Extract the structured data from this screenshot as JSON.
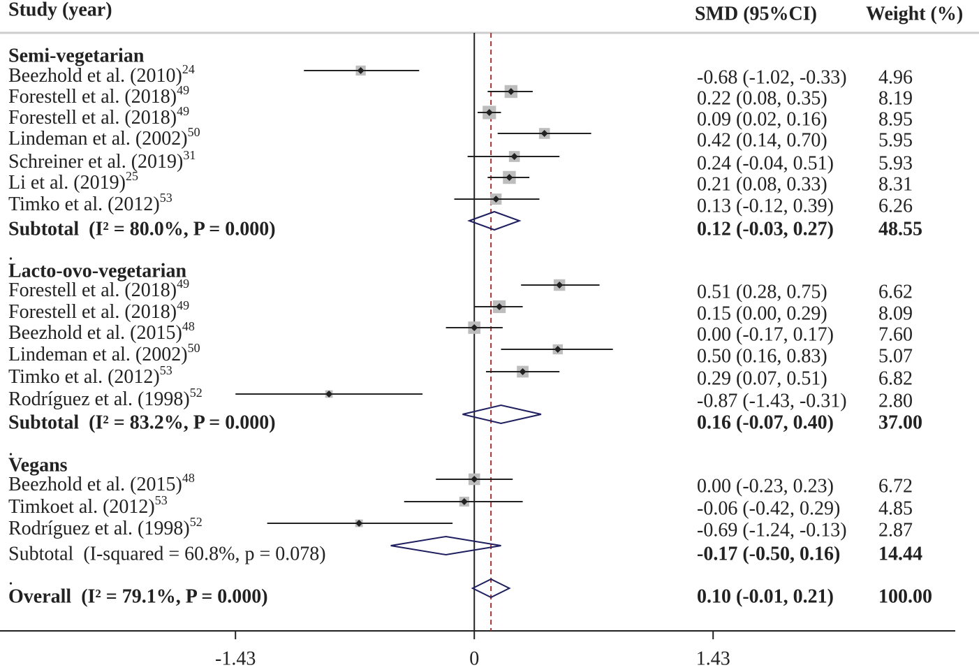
{
  "chart_data": {
    "type": "forest",
    "headers": {
      "study": "Study (year)",
      "estimate": "SMD (95%CI)",
      "weight": "Weight (%)"
    },
    "xlim": [
      -2.84,
      2.88
    ],
    "xticks": [
      -1.43,
      0,
      1.43
    ],
    "groups": [
      {
        "name": "Semi-vegetarian",
        "rows": [
          {
            "label": "Beezhold et al. (2010)",
            "ref": "24",
            "estimate": -0.68,
            "lower": -1.02,
            "upper": -0.33,
            "weight": 4.96,
            "estimate_label": "-0.68 (-1.02, -0.33)",
            "weight_label": "4.96"
          },
          {
            "label": "Forestell et al. (2018)",
            "ref": "49",
            "estimate": 0.22,
            "lower": 0.08,
            "upper": 0.35,
            "weight": 8.19,
            "estimate_label": "0.22 (0.08, 0.35)",
            "weight_label": "8.19"
          },
          {
            "label": "Forestell et al. (2018)",
            "ref": "49",
            "estimate": 0.09,
            "lower": 0.02,
            "upper": 0.16,
            "weight": 8.95,
            "estimate_label": "0.09 (0.02, 0.16)",
            "weight_label": "8.95"
          },
          {
            "label": "Lindeman et al. (2002)",
            "ref": "50",
            "estimate": 0.42,
            "lower": 0.14,
            "upper": 0.7,
            "weight": 5.95,
            "estimate_label": "0.42 (0.14, 0.70)",
            "weight_label": "5.95"
          },
          {
            "label": "Schreiner et al. (2019)",
            "ref": "31",
            "estimate": 0.24,
            "lower": -0.04,
            "upper": 0.51,
            "weight": 5.93,
            "estimate_label": "0.24 (-0.04, 0.51)",
            "weight_label": "5.93"
          },
          {
            "label": "Li et al. (2019)",
            "ref": "25",
            "estimate": 0.21,
            "lower": 0.08,
            "upper": 0.33,
            "weight": 8.31,
            "estimate_label": "0.21 (0.08, 0.33)",
            "weight_label": "8.31"
          },
          {
            "label": "Timko et al. (2012)",
            "ref": "53",
            "estimate": 0.13,
            "lower": -0.12,
            "upper": 0.39,
            "weight": 6.26,
            "estimate_label": "0.13 (-0.12, 0.39)",
            "weight_label": "6.26"
          }
        ],
        "subtotal": {
          "label": "Subtotal  (I² = 80.0%, P = 0.000)",
          "estimate": 0.12,
          "lower": -0.03,
          "upper": 0.27,
          "weight": 48.55,
          "estimate_label": "0.12 (-0.03, 0.27)",
          "weight_label": "48.55"
        },
        "trailer": "."
      },
      {
        "name": "Lacto-ovo-vegetarian",
        "rows": [
          {
            "label": "Forestell et al. (2018)",
            "ref": "49",
            "estimate": 0.51,
            "lower": 0.28,
            "upper": 0.75,
            "weight": 6.62,
            "estimate_label": "0.51 (0.28, 0.75)",
            "weight_label": "6.62"
          },
          {
            "label": "Forestell et al. (2018)",
            "ref": "49",
            "estimate": 0.15,
            "lower": 0.0,
            "upper": 0.29,
            "weight": 8.09,
            "estimate_label": "0.15 (0.00, 0.29)",
            "weight_label": "8.09"
          },
          {
            "label": "Beezhold et al. (2015)",
            "ref": "48",
            "estimate": 0.0,
            "lower": -0.17,
            "upper": 0.17,
            "weight": 7.6,
            "estimate_label": "0.00 (-0.17, 0.17)",
            "weight_label": "7.60"
          },
          {
            "label": "Lindeman et al. (2002)",
            "ref": "50",
            "estimate": 0.5,
            "lower": 0.16,
            "upper": 0.83,
            "weight": 5.07,
            "estimate_label": "0.50 (0.16, 0.83)",
            "weight_label": "5.07"
          },
          {
            "label": "Timko et al. (2012)",
            "ref": "53",
            "estimate": 0.29,
            "lower": 0.07,
            "upper": 0.51,
            "weight": 6.82,
            "estimate_label": "0.29 (0.07, 0.51)",
            "weight_label": "6.82"
          },
          {
            "label": "Rodríguez et al. (1998)",
            "ref": "52",
            "estimate": -0.87,
            "lower": -1.43,
            "upper": -0.31,
            "weight": 2.8,
            "estimate_label": "-0.87 (-1.43, -0.31)",
            "weight_label": "2.80"
          }
        ],
        "subtotal": {
          "label": "Subtotal  (I² = 83.2%, P = 0.000)",
          "estimate": 0.16,
          "lower": -0.07,
          "upper": 0.4,
          "weight": 37.0,
          "estimate_label": "0.16 (-0.07, 0.40)",
          "weight_label": "37.00"
        },
        "trailer": "."
      },
      {
        "name": "Vegans",
        "rows": [
          {
            "label": "Beezhold et al. (2015)",
            "ref": "48",
            "estimate": 0.0,
            "lower": -0.23,
            "upper": 0.23,
            "weight": 6.72,
            "estimate_label": "0.00 (-0.23, 0.23)",
            "weight_label": "6.72"
          },
          {
            "label": "Timkoet al. (2012)",
            "ref": "53",
            "estimate": -0.06,
            "lower": -0.42,
            "upper": 0.29,
            "weight": 4.85,
            "estimate_label": "-0.06 (-0.42, 0.29)",
            "weight_label": "4.85"
          },
          {
            "label": "Rodríguez et al. (1998)",
            "ref": "52",
            "estimate": -0.69,
            "lower": -1.24,
            "upper": -0.13,
            "weight": 2.87,
            "estimate_label": "-0.69 (-1.24, -0.13)",
            "weight_label": "2.87"
          }
        ],
        "subtotal": {
          "label": "Subtotal  (I-squared = 60.8%, p = 0.078)",
          "estimate": -0.17,
          "lower": -0.5,
          "upper": 0.16,
          "weight": 14.44,
          "estimate_label": "-0.17 (-0.50, 0.16)",
          "weight_label": "14.44"
        },
        "trailer": "."
      }
    ],
    "overall": {
      "label": "Overall  (I² = 79.1%, P = 0.000)",
      "estimate": 0.1,
      "lower": -0.01,
      "upper": 0.21,
      "weight": 100.0,
      "estimate_label": "0.10 (-0.01, 0.21)",
      "weight_label": "100.00"
    }
  }
}
